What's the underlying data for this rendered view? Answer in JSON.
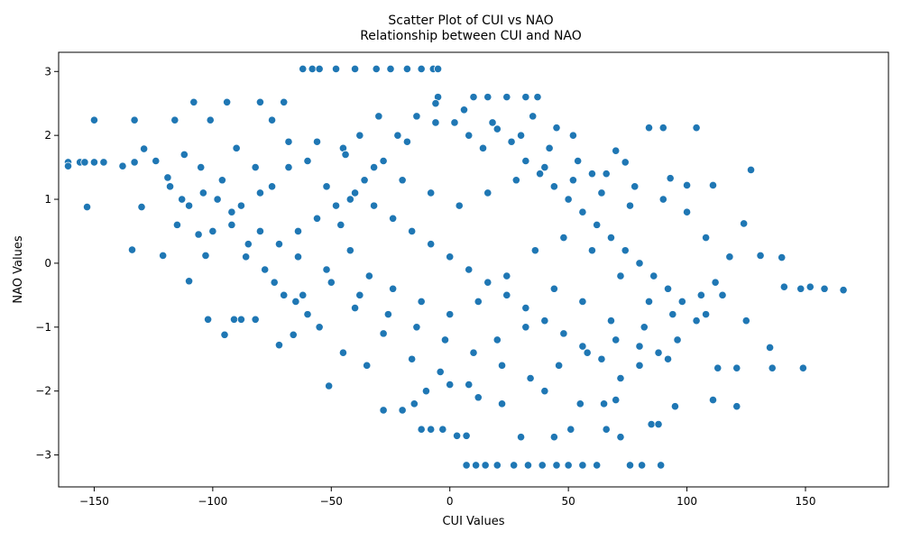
{
  "chart_data": {
    "type": "scatter",
    "title": "Scatter Plot of CUI vs NAO\nRelationship between CUI and NAO",
    "xlabel": "CUI Values",
    "ylabel": "NAO Values",
    "xlim": [
      -165,
      185
    ],
    "ylim": [
      -3.5,
      3.3
    ],
    "xticks": [
      -150,
      -100,
      -50,
      0,
      50,
      100,
      150
    ],
    "yticks": [
      -3,
      -2,
      -1,
      0,
      1,
      2,
      3
    ],
    "grid": false,
    "legend": "none",
    "marker_color": "#1f77b4",
    "marker_edge_color": "#ffffff",
    "points": [
      [
        -161,
        1.58
      ],
      [
        -161,
        1.52
      ],
      [
        -156,
        1.58
      ],
      [
        -154,
        1.58
      ],
      [
        -153,
        0.88
      ],
      [
        -150,
        1.58
      ],
      [
        -150,
        2.24
      ],
      [
        -146,
        1.58
      ],
      [
        -138,
        1.52
      ],
      [
        -134,
        0.21
      ],
      [
        -133,
        2.24
      ],
      [
        -133,
        1.58
      ],
      [
        -130,
        0.88
      ],
      [
        -129,
        1.79
      ],
      [
        -124,
        1.6
      ],
      [
        -121,
        0.12
      ],
      [
        -119,
        1.34
      ],
      [
        -116,
        2.24
      ],
      [
        -115,
        0.6
      ],
      [
        -113,
        1.0
      ],
      [
        -110,
        -0.28
      ],
      [
        -108,
        2.52
      ],
      [
        -106,
        0.45
      ],
      [
        -103,
        0.12
      ],
      [
        -102,
        -0.88
      ],
      [
        -101,
        2.24
      ],
      [
        -95,
        -1.12
      ],
      [
        -94,
        2.52
      ],
      [
        -91,
        -0.88
      ],
      [
        -88,
        -0.88
      ],
      [
        -82,
        -0.88
      ],
      [
        -80,
        2.52
      ],
      [
        -75,
        2.24
      ],
      [
        -72,
        -1.28
      ],
      [
        -70,
        2.52
      ],
      [
        -66,
        -1.12
      ],
      [
        -62,
        3.04
      ],
      [
        -58,
        3.04
      ],
      [
        -55,
        3.04
      ],
      [
        -51,
        -1.92
      ],
      [
        -48,
        3.04
      ],
      [
        -40,
        3.04
      ],
      [
        -31,
        3.04
      ],
      [
        -25,
        3.04
      ],
      [
        -18,
        3.04
      ],
      [
        -12,
        3.04
      ],
      [
        -7,
        3.04
      ],
      [
        -5,
        3.04
      ],
      [
        -5,
        2.6
      ],
      [
        -12,
        -2.6
      ],
      [
        -8,
        -2.6
      ],
      [
        -3,
        -2.6
      ],
      [
        3,
        -2.7
      ],
      [
        7,
        -2.7
      ],
      [
        7,
        -3.16
      ],
      [
        11,
        -3.16
      ],
      [
        15,
        -3.16
      ],
      [
        20,
        -3.16
      ],
      [
        27,
        -3.16
      ],
      [
        33,
        -3.16
      ],
      [
        39,
        -3.16
      ],
      [
        45,
        -3.16
      ],
      [
        50,
        -3.16
      ],
      [
        56,
        -3.16
      ],
      [
        62,
        -3.16
      ],
      [
        76,
        -3.16
      ],
      [
        81,
        -3.16
      ],
      [
        89,
        -3.16
      ],
      [
        10,
        2.6
      ],
      [
        16,
        2.6
      ],
      [
        24,
        2.6
      ],
      [
        32,
        2.6
      ],
      [
        37,
        2.6
      ],
      [
        30,
        -2.72
      ],
      [
        44,
        -2.72
      ],
      [
        51,
        -2.6
      ],
      [
        66,
        -2.6
      ],
      [
        72,
        -2.72
      ],
      [
        85,
        -2.52
      ],
      [
        88,
        -2.52
      ],
      [
        70,
        -2.14
      ],
      [
        95,
        -2.24
      ],
      [
        111,
        -2.14
      ],
      [
        121,
        -2.24
      ],
      [
        113,
        -1.64
      ],
      [
        121,
        -1.64
      ],
      [
        136,
        -1.64
      ],
      [
        149,
        -1.64
      ],
      [
        108,
        -0.8
      ],
      [
        115,
        -0.5
      ],
      [
        125,
        -0.9
      ],
      [
        127,
        1.46
      ],
      [
        131,
        0.12
      ],
      [
        135,
        -1.32
      ],
      [
        140,
        0.09
      ],
      [
        141,
        -0.37
      ],
      [
        148,
        -0.4
      ],
      [
        152,
        -0.37
      ],
      [
        158,
        -0.4
      ],
      [
        166,
        -0.42
      ],
      [
        124,
        0.62
      ],
      [
        111,
        1.22
      ],
      [
        104,
        2.12
      ],
      [
        93,
        1.33
      ],
      [
        100,
        1.22
      ],
      [
        84,
        2.12
      ],
      [
        90,
        2.12
      ],
      [
        70,
        1.76
      ],
      [
        74,
        1.58
      ],
      [
        45,
        2.12
      ],
      [
        35,
        2.3
      ],
      [
        52,
        2.0
      ],
      [
        60,
        1.4
      ],
      [
        -45,
        -1.4
      ],
      [
        -35,
        -1.6
      ],
      [
        -28,
        -2.3
      ],
      [
        -20,
        -2.3
      ],
      [
        -15,
        -2.2
      ],
      [
        -10,
        -2.0
      ],
      [
        0,
        -1.9
      ],
      [
        12,
        -2.1
      ],
      [
        22,
        -2.2
      ],
      [
        40,
        -2.0
      ],
      [
        55,
        -2.2
      ],
      [
        65,
        -2.2
      ],
      [
        -60,
        -0.8
      ],
      [
        -55,
        -1.0
      ],
      [
        -65,
        -0.6
      ],
      [
        -70,
        -0.5
      ],
      [
        -78,
        -0.1
      ],
      [
        -85,
        0.3
      ],
      [
        -92,
        0.6
      ],
      [
        -98,
        1.0
      ],
      [
        -105,
        1.5
      ],
      [
        -112,
        1.7
      ],
      [
        -118,
        1.2
      ],
      [
        -90,
        1.8
      ],
      [
        -82,
        1.5
      ],
      [
        -75,
        1.2
      ],
      [
        -68,
        1.9
      ],
      [
        -60,
        1.6
      ],
      [
        -52,
        1.2
      ],
      [
        -45,
        1.8
      ],
      [
        -38,
        2.0
      ],
      [
        -30,
        2.3
      ],
      [
        -22,
        2.0
      ],
      [
        -14,
        2.3
      ],
      [
        -6,
        2.5
      ],
      [
        2,
        2.2
      ],
      [
        8,
        2.0
      ],
      [
        14,
        1.8
      ],
      [
        20,
        2.1
      ],
      [
        26,
        1.9
      ],
      [
        32,
        1.6
      ],
      [
        38,
        1.4
      ],
      [
        44,
        1.2
      ],
      [
        50,
        1.0
      ],
      [
        56,
        0.8
      ],
      [
        62,
        0.6
      ],
      [
        68,
        0.4
      ],
      [
        74,
        0.2
      ],
      [
        80,
        0.0
      ],
      [
        86,
        -0.2
      ],
      [
        92,
        -0.4
      ],
      [
        98,
        -0.6
      ],
      [
        104,
        -0.9
      ],
      [
        96,
        -1.2
      ],
      [
        88,
        -1.4
      ],
      [
        80,
        -1.6
      ],
      [
        72,
        -1.8
      ],
      [
        64,
        -1.5
      ],
      [
        56,
        -1.3
      ],
      [
        48,
        -1.1
      ],
      [
        40,
        -0.9
      ],
      [
        32,
        -0.7
      ],
      [
        24,
        -0.5
      ],
      [
        16,
        -0.3
      ],
      [
        8,
        -0.1
      ],
      [
        0,
        0.1
      ],
      [
        -8,
        0.3
      ],
      [
        -16,
        0.5
      ],
      [
        -24,
        0.7
      ],
      [
        -32,
        0.9
      ],
      [
        -40,
        1.1
      ],
      [
        -48,
        0.9
      ],
      [
        -56,
        0.7
      ],
      [
        -64,
        0.5
      ],
      [
        -72,
        0.3
      ],
      [
        -80,
        0.5
      ],
      [
        -88,
        0.9
      ],
      [
        -96,
        1.3
      ],
      [
        -104,
        1.1
      ],
      [
        -110,
        0.9
      ],
      [
        -100,
        0.5
      ],
      [
        -86,
        0.1
      ],
      [
        -74,
        -0.3
      ],
      [
        -62,
        -0.5
      ],
      [
        -50,
        -0.3
      ],
      [
        -38,
        -0.5
      ],
      [
        -26,
        -0.8
      ],
      [
        -14,
        -1.0
      ],
      [
        -2,
        -1.2
      ],
      [
        10,
        -1.4
      ],
      [
        22,
        -1.6
      ],
      [
        34,
        -1.8
      ],
      [
        46,
        -1.6
      ],
      [
        58,
        -1.4
      ],
      [
        70,
        -1.2
      ],
      [
        82,
        -1.0
      ],
      [
        94,
        -0.8
      ],
      [
        106,
        -0.5
      ],
      [
        112,
        -0.3
      ],
      [
        118,
        0.1
      ],
      [
        108,
        0.4
      ],
      [
        100,
        0.8
      ],
      [
        90,
        1.0
      ],
      [
        78,
        1.2
      ],
      [
        66,
        1.4
      ],
      [
        54,
        1.6
      ],
      [
        42,
        1.8
      ],
      [
        30,
        2.0
      ],
      [
        18,
        2.2
      ],
      [
        6,
        2.4
      ],
      [
        -6,
        2.2
      ],
      [
        -18,
        1.9
      ],
      [
        -28,
        1.6
      ],
      [
        -36,
        1.3
      ],
      [
        -42,
        1.0
      ],
      [
        -46,
        0.6
      ],
      [
        -42,
        0.2
      ],
      [
        -34,
        -0.2
      ],
      [
        -24,
        -0.4
      ],
      [
        -12,
        -0.6
      ],
      [
        0,
        -0.8
      ],
      [
        12,
        -0.6
      ],
      [
        24,
        -0.2
      ],
      [
        36,
        0.2
      ],
      [
        48,
        0.4
      ],
      [
        60,
        0.2
      ],
      [
        72,
        -0.2
      ],
      [
        84,
        -0.6
      ],
      [
        76,
        0.9
      ],
      [
        64,
        1.1
      ],
      [
        52,
        1.3
      ],
      [
        40,
        1.5
      ],
      [
        28,
        1.3
      ],
      [
        16,
        1.1
      ],
      [
        4,
        0.9
      ],
      [
        -8,
        1.1
      ],
      [
        -20,
        1.3
      ],
      [
        -32,
        1.5
      ],
      [
        -44,
        1.7
      ],
      [
        -56,
        1.9
      ],
      [
        -68,
        1.5
      ],
      [
        -80,
        1.1
      ],
      [
        -92,
        0.8
      ],
      [
        -64,
        0.1
      ],
      [
        -52,
        -0.1
      ],
      [
        -40,
        -0.7
      ],
      [
        -28,
        -1.1
      ],
      [
        -16,
        -1.5
      ],
      [
        -4,
        -1.7
      ],
      [
        8,
        -1.9
      ],
      [
        20,
        -1.2
      ],
      [
        32,
        -1.0
      ],
      [
        44,
        -0.4
      ],
      [
        56,
        -0.6
      ],
      [
        68,
        -0.9
      ],
      [
        80,
        -1.3
      ],
      [
        92,
        -1.5
      ]
    ]
  }
}
